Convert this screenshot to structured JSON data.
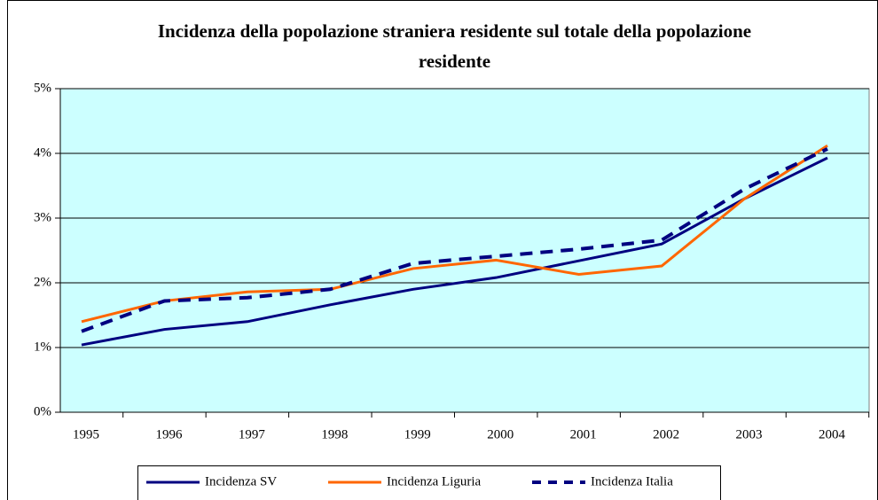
{
  "chart_data": {
    "type": "line",
    "title": "Incidenza della popolazione straniera residente sul totale della popolazione residente",
    "categories": [
      "1995",
      "1996",
      "1997",
      "1998",
      "1999",
      "2000",
      "2001",
      "2002",
      "2003",
      "2004"
    ],
    "series": [
      {
        "name": "Incidenza SV",
        "color": "#000080",
        "style": "solid",
        "values": [
          1.04,
          1.28,
          1.4,
          1.66,
          1.9,
          2.08,
          2.34,
          2.6,
          3.3,
          3.93
        ]
      },
      {
        "name": "Incidenza Liguria",
        "color": "#ff6600",
        "style": "solid",
        "values": [
          1.4,
          1.72,
          1.86,
          1.9,
          2.22,
          2.35,
          2.13,
          2.26,
          3.3,
          4.12
        ]
      },
      {
        "name": "Incidenza Italia",
        "color": "#000080",
        "style": "dashed",
        "values": [
          1.25,
          1.72,
          1.77,
          1.9,
          2.3,
          2.41,
          2.52,
          2.66,
          3.45,
          4.07
        ]
      }
    ],
    "ylim": [
      0,
      5
    ],
    "yticks": [
      {
        "value": 0,
        "label": "0%"
      },
      {
        "value": 1,
        "label": "1%"
      },
      {
        "value": 2,
        "label": "2%"
      },
      {
        "value": 3,
        "label": "3%"
      },
      {
        "value": 4,
        "label": "4%"
      },
      {
        "value": 5,
        "label": "5%"
      }
    ],
    "grid": true,
    "background": "#ccffff",
    "legend": "bottom"
  }
}
